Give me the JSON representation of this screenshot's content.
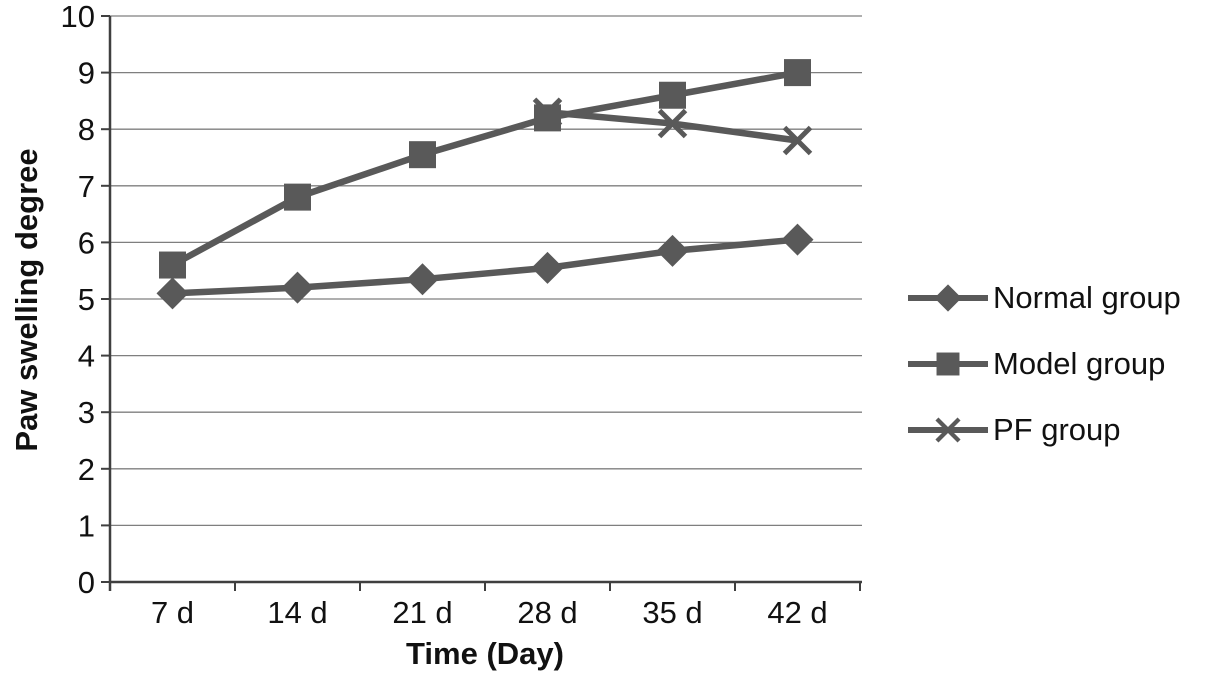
{
  "chart_data": {
    "type": "line",
    "title": "",
    "xlabel": "Time (Day)",
    "ylabel": "Paw swelling degree",
    "categories": [
      "7 d",
      "14 d",
      "21 d",
      "28 d",
      "35 d",
      "42 d"
    ],
    "series": [
      {
        "name": "Normal group",
        "marker": "diamond",
        "values": [
          5.1,
          5.2,
          5.35,
          5.55,
          5.85,
          6.05
        ]
      },
      {
        "name": "Model group",
        "marker": "square",
        "values": [
          5.6,
          6.8,
          7.55,
          8.2,
          8.6,
          9.0
        ]
      },
      {
        "name": "PF group",
        "marker": "x",
        "values": [
          null,
          null,
          null,
          8.3,
          8.1,
          7.8
        ]
      }
    ],
    "ylim": [
      0,
      10
    ],
    "ytick_step": 1,
    "grid": true,
    "legend_position": "right",
    "colors": {
      "series": "#595959",
      "gridline": "#7f7f7f",
      "axis": "#3f3f3f",
      "text": "#111111",
      "background": "#ffffff"
    }
  }
}
